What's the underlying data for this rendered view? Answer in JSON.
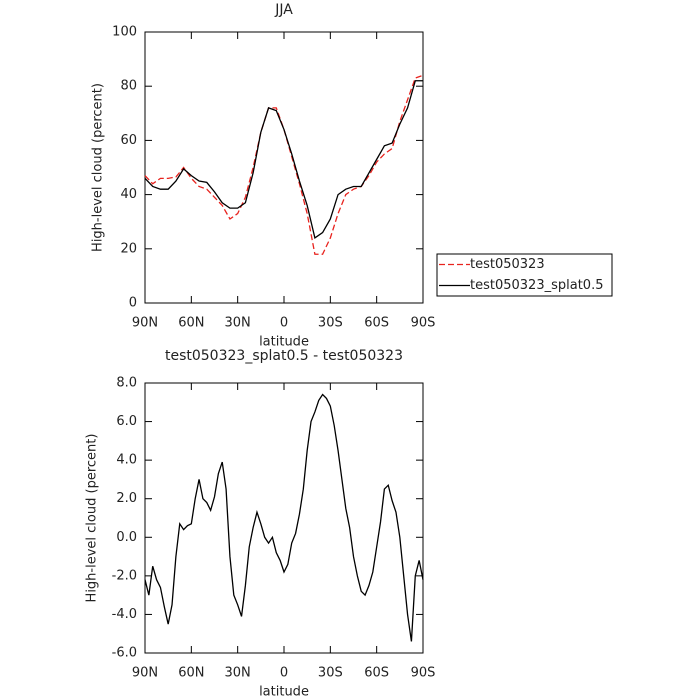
{
  "chart_data": [
    {
      "type": "line",
      "title": "JJA",
      "xlabel": "latitude",
      "ylabel": "High-level cloud (percent)",
      "x": [
        90,
        85,
        80,
        75,
        70,
        65,
        60,
        55,
        50,
        45,
        40,
        35,
        30,
        25,
        20,
        15,
        10,
        5,
        0,
        -5,
        -10,
        -15,
        -20,
        -25,
        -30,
        -35,
        -40,
        -45,
        -50,
        -55,
        -60,
        -65,
        -70,
        -75,
        -80,
        -85,
        -90
      ],
      "series": [
        {
          "name": "test050323",
          "color": "#e8231e",
          "linestyle": "dashed",
          "values": [
            47,
            44,
            46,
            46,
            46.5,
            50,
            46,
            43,
            42,
            39,
            36,
            31,
            33,
            39,
            50,
            63,
            72,
            72,
            64,
            54,
            44,
            33,
            18,
            18,
            24,
            33,
            40,
            42,
            43,
            47,
            52,
            55,
            57,
            67,
            75,
            83,
            84
          ]
        },
        {
          "name": "test050323_splat0.5",
          "color": "#000000",
          "linestyle": "solid",
          "values": [
            46,
            43,
            42,
            42,
            45,
            49.5,
            47,
            45,
            44.5,
            41,
            37,
            35,
            35,
            37,
            48,
            63,
            72,
            71,
            64,
            55,
            45,
            36,
            24,
            26,
            31,
            40,
            42,
            43,
            43,
            48,
            53,
            58,
            59,
            66,
            72,
            82,
            82
          ]
        }
      ],
      "xlim": [
        90,
        -90
      ],
      "xticks": [
        {
          "value": 90,
          "label": "90N"
        },
        {
          "value": 60,
          "label": "60N"
        },
        {
          "value": 30,
          "label": "30N"
        },
        0,
        {
          "value": -30,
          "label": "30S"
        },
        {
          "value": -60,
          "label": "60S"
        },
        {
          "value": -90,
          "label": "90S"
        }
      ],
      "ylim": [
        0,
        100
      ],
      "yticks": [
        0,
        20,
        40,
        60,
        80,
        100
      ],
      "legend": "right"
    },
    {
      "type": "line",
      "title": "test050323_splat0.5 - test050323",
      "xlabel": "latitude",
      "ylabel": "High-level cloud (percent)",
      "x": [
        90,
        87.5,
        85,
        82.5,
        80,
        77.5,
        75,
        72.5,
        70,
        67.5,
        65,
        62.5,
        60,
        57.5,
        55,
        52.5,
        50,
        47.5,
        45,
        42.5,
        40,
        37.5,
        35,
        32.5,
        30,
        27.5,
        25,
        22.5,
        20,
        17.5,
        15,
        12.5,
        10,
        7.5,
        5,
        2.5,
        0,
        -2.5,
        -5,
        -7.5,
        -10,
        -12.5,
        -15,
        -17.5,
        -20,
        -22.5,
        -25,
        -27.5,
        -30,
        -32.5,
        -35,
        -37.5,
        -40,
        -42.5,
        -45,
        -47.5,
        -50,
        -52.5,
        -55,
        -57.5,
        -60,
        -62.5,
        -65,
        -67.5,
        -70,
        -72.5,
        -75,
        -77.5,
        -80,
        -82.5,
        -85,
        -87.5,
        -90
      ],
      "values": [
        -2.2,
        -3,
        -1.5,
        -2.2,
        -2.6,
        -3.6,
        -4.5,
        -3.5,
        -1,
        0.7,
        0.4,
        0.6,
        0.7,
        2,
        3,
        2,
        1.8,
        1.4,
        2.1,
        3.3,
        3.9,
        2.5,
        -1,
        -3,
        -3.5,
        -4.1,
        -2.5,
        -0.5,
        0.5,
        1.3,
        0.7,
        0,
        -0.3,
        0,
        -0.8,
        -1.2,
        -1.8,
        -1.4,
        -0.3,
        0.2,
        1.2,
        2.5,
        4.5,
        6,
        6.5,
        7.1,
        7.4,
        7.2,
        6.8,
        5.8,
        4.5,
        3,
        1.5,
        0.5,
        -1,
        -2,
        -2.8,
        -3,
        -2.5,
        -1.8,
        -0.5,
        0.8,
        2.5,
        2.7,
        1.9,
        1.3,
        0,
        -2,
        -4,
        -5.4,
        -2,
        -1.2,
        -2.2
      ],
      "color": "#000000",
      "linestyle": "solid",
      "xlim": [
        90,
        -90
      ],
      "xticks": [
        {
          "value": 90,
          "label": "90N"
        },
        {
          "value": 60,
          "label": "60N"
        },
        {
          "value": 30,
          "label": "30N"
        },
        0,
        {
          "value": -30,
          "label": "30S"
        },
        {
          "value": -60,
          "label": "60S"
        },
        {
          "value": -90,
          "label": "90S"
        }
      ],
      "ylim": [
        -6,
        8
      ],
      "yticks": [
        {
          "value": -6,
          "label": "-6.0"
        },
        {
          "value": -4,
          "label": "-4.0"
        },
        {
          "value": -2,
          "label": "-2.0"
        },
        {
          "value": 0,
          "label": "0.0"
        },
        {
          "value": 2,
          "label": "2.0"
        },
        {
          "value": 4,
          "label": "4.0"
        },
        {
          "value": 6,
          "label": "6.0"
        },
        {
          "value": 8,
          "label": "8.0"
        }
      ]
    }
  ]
}
